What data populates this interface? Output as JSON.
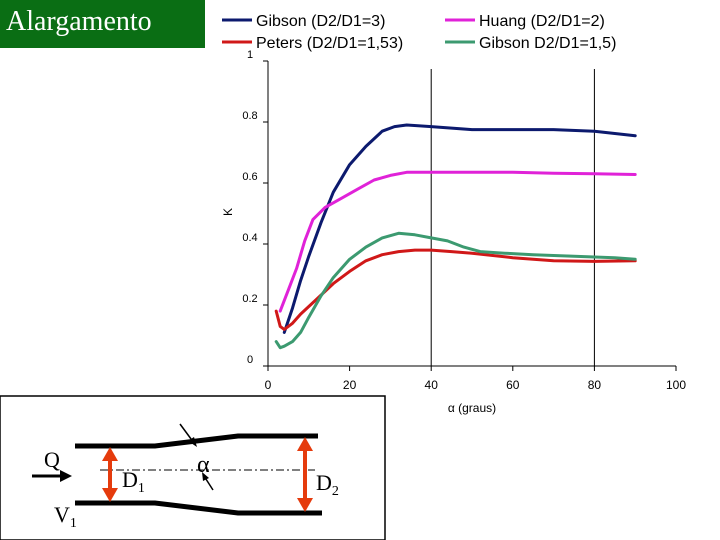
{
  "slide_title": "Alargamento",
  "chart_data": {
    "type": "line",
    "xlabel": "α (graus)",
    "ylabel": "K",
    "xlim": [
      0,
      100
    ],
    "ylim": [
      0,
      1
    ],
    "x_ticks": [
      "0",
      "20",
      "40",
      "60",
      "80",
      "100"
    ],
    "y_ticks": [
      "0",
      "0.2",
      "0.4",
      "0.6",
      "0.8",
      "1"
    ],
    "grid": "vertical at 40 and 80",
    "legend_position": "top",
    "series": [
      {
        "name": "Gibson (D2/D1=3)",
        "color": "#0c1a6e",
        "points": [
          [
            4,
            0.11
          ],
          [
            6,
            0.19
          ],
          [
            8,
            0.28
          ],
          [
            10,
            0.36
          ],
          [
            13,
            0.47
          ],
          [
            16,
            0.57
          ],
          [
            20,
            0.66
          ],
          [
            24,
            0.72
          ],
          [
            28,
            0.77
          ],
          [
            31,
            0.785
          ],
          [
            34,
            0.79
          ],
          [
            40,
            0.785
          ],
          [
            45,
            0.78
          ],
          [
            50,
            0.775
          ],
          [
            60,
            0.775
          ],
          [
            70,
            0.775
          ],
          [
            80,
            0.77
          ],
          [
            90,
            0.755
          ]
        ]
      },
      {
        "name": "Huang (D2/D1=2)",
        "color": "#e022d8",
        "points": [
          [
            3,
            0.18
          ],
          [
            5,
            0.25
          ],
          [
            7,
            0.32
          ],
          [
            9,
            0.41
          ],
          [
            11,
            0.48
          ],
          [
            14,
            0.52
          ],
          [
            18,
            0.55
          ],
          [
            22,
            0.58
          ],
          [
            26,
            0.61
          ],
          [
            30,
            0.625
          ],
          [
            34,
            0.635
          ],
          [
            40,
            0.635
          ],
          [
            50,
            0.635
          ],
          [
            60,
            0.635
          ],
          [
            70,
            0.632
          ],
          [
            80,
            0.63
          ],
          [
            90,
            0.628
          ]
        ]
      },
      {
        "name": "Peters (D2/D1=1,53)",
        "color": "#d01818",
        "points": [
          [
            2,
            0.18
          ],
          [
            3,
            0.13
          ],
          [
            4,
            0.12
          ],
          [
            6,
            0.14
          ],
          [
            8,
            0.17
          ],
          [
            12,
            0.22
          ],
          [
            16,
            0.27
          ],
          [
            20,
            0.31
          ],
          [
            24,
            0.345
          ],
          [
            28,
            0.365
          ],
          [
            32,
            0.375
          ],
          [
            36,
            0.38
          ],
          [
            40,
            0.38
          ],
          [
            45,
            0.375
          ],
          [
            50,
            0.37
          ],
          [
            60,
            0.355
          ],
          [
            70,
            0.345
          ],
          [
            80,
            0.343
          ],
          [
            90,
            0.345
          ]
        ]
      },
      {
        "name": "Gibson D2/D1=1,5)",
        "color": "#3c9a70",
        "points": [
          [
            2,
            0.08
          ],
          [
            3,
            0.06
          ],
          [
            4,
            0.065
          ],
          [
            6,
            0.08
          ],
          [
            8,
            0.11
          ],
          [
            10,
            0.16
          ],
          [
            13,
            0.23
          ],
          [
            16,
            0.29
          ],
          [
            20,
            0.35
          ],
          [
            24,
            0.39
          ],
          [
            28,
            0.42
          ],
          [
            32,
            0.435
          ],
          [
            36,
            0.43
          ],
          [
            40,
            0.42
          ],
          [
            44,
            0.41
          ],
          [
            48,
            0.39
          ],
          [
            52,
            0.375
          ],
          [
            58,
            0.37
          ],
          [
            65,
            0.365
          ],
          [
            75,
            0.36
          ],
          [
            85,
            0.355
          ],
          [
            90,
            0.35
          ]
        ]
      }
    ]
  },
  "diagram": {
    "label_q": "Q",
    "label_v": "V",
    "label_v_sub": "1",
    "label_d1": "D",
    "label_d1_sub": "1",
    "label_alpha": "α",
    "label_d2": "D",
    "label_d2_sub": "2",
    "arrow_color": "#e53b0d"
  }
}
